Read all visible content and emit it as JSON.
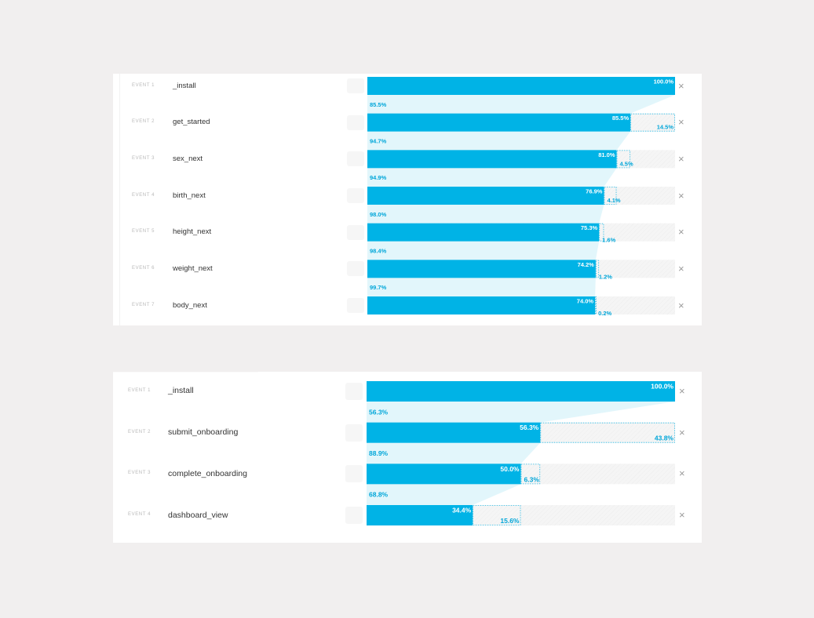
{
  "colors": {
    "background": "#f1efef",
    "panel": "#ffffff",
    "bar": "#00b3e6",
    "flow": "#e2f6fb",
    "remaining_track": "#f5f5f5",
    "dropoff_border": "#2bbce6",
    "accent_text": "#00a6d9",
    "label_text": "#b9b9b9",
    "name_text": "#333333",
    "close": "#9a9a9a"
  },
  "funnels": [
    {
      "events": [
        {
          "label": "EVENT 1",
          "name": "_install",
          "percent": 100.0,
          "value_label": "100.0%",
          "dropoff_label": ""
        },
        {
          "label": "EVENT 2",
          "name": "get_started",
          "percent": 85.5,
          "value_label": "85.5%",
          "dropoff_label": "14.5%"
        },
        {
          "label": "EVENT 3",
          "name": "sex_next",
          "percent": 81.0,
          "value_label": "81.0%",
          "dropoff_label": "4.5%"
        },
        {
          "label": "EVENT 4",
          "name": "birth_next",
          "percent": 76.9,
          "value_label": "76.9%",
          "dropoff_label": "4.1%"
        },
        {
          "label": "EVENT 5",
          "name": "height_next",
          "percent": 75.3,
          "value_label": "75.3%",
          "dropoff_label": "1.6%"
        },
        {
          "label": "EVENT 6",
          "name": "weight_next",
          "percent": 74.2,
          "value_label": "74.2%",
          "dropoff_label": "1.2%"
        },
        {
          "label": "EVENT 7",
          "name": "body_next",
          "percent": 74.0,
          "value_label": "74.0%",
          "dropoff_label": "0.2%"
        }
      ],
      "conversions": [
        "85.5%",
        "94.7%",
        "94.9%",
        "98.0%",
        "98.4%",
        "99.7%"
      ]
    },
    {
      "events": [
        {
          "label": "EVENT 1",
          "name": "_install",
          "percent": 100.0,
          "value_label": "100.0%",
          "dropoff_label": ""
        },
        {
          "label": "EVENT 2",
          "name": "submit_onboarding",
          "percent": 56.3,
          "value_label": "56.3%",
          "dropoff_label": "43.8%"
        },
        {
          "label": "EVENT 3",
          "name": "complete_onboarding",
          "percent": 50.0,
          "value_label": "50.0%",
          "dropoff_label": "6.3%"
        },
        {
          "label": "EVENT 4",
          "name": "dashboard_view",
          "percent": 34.4,
          "value_label": "34.4%",
          "dropoff_label": "15.6%"
        }
      ],
      "conversions": [
        "56.3%",
        "88.9%",
        "68.8%"
      ]
    }
  ],
  "icons": {
    "remove": "×",
    "remove_name": "close-icon",
    "event_icon_name": "event-type-icon"
  }
}
